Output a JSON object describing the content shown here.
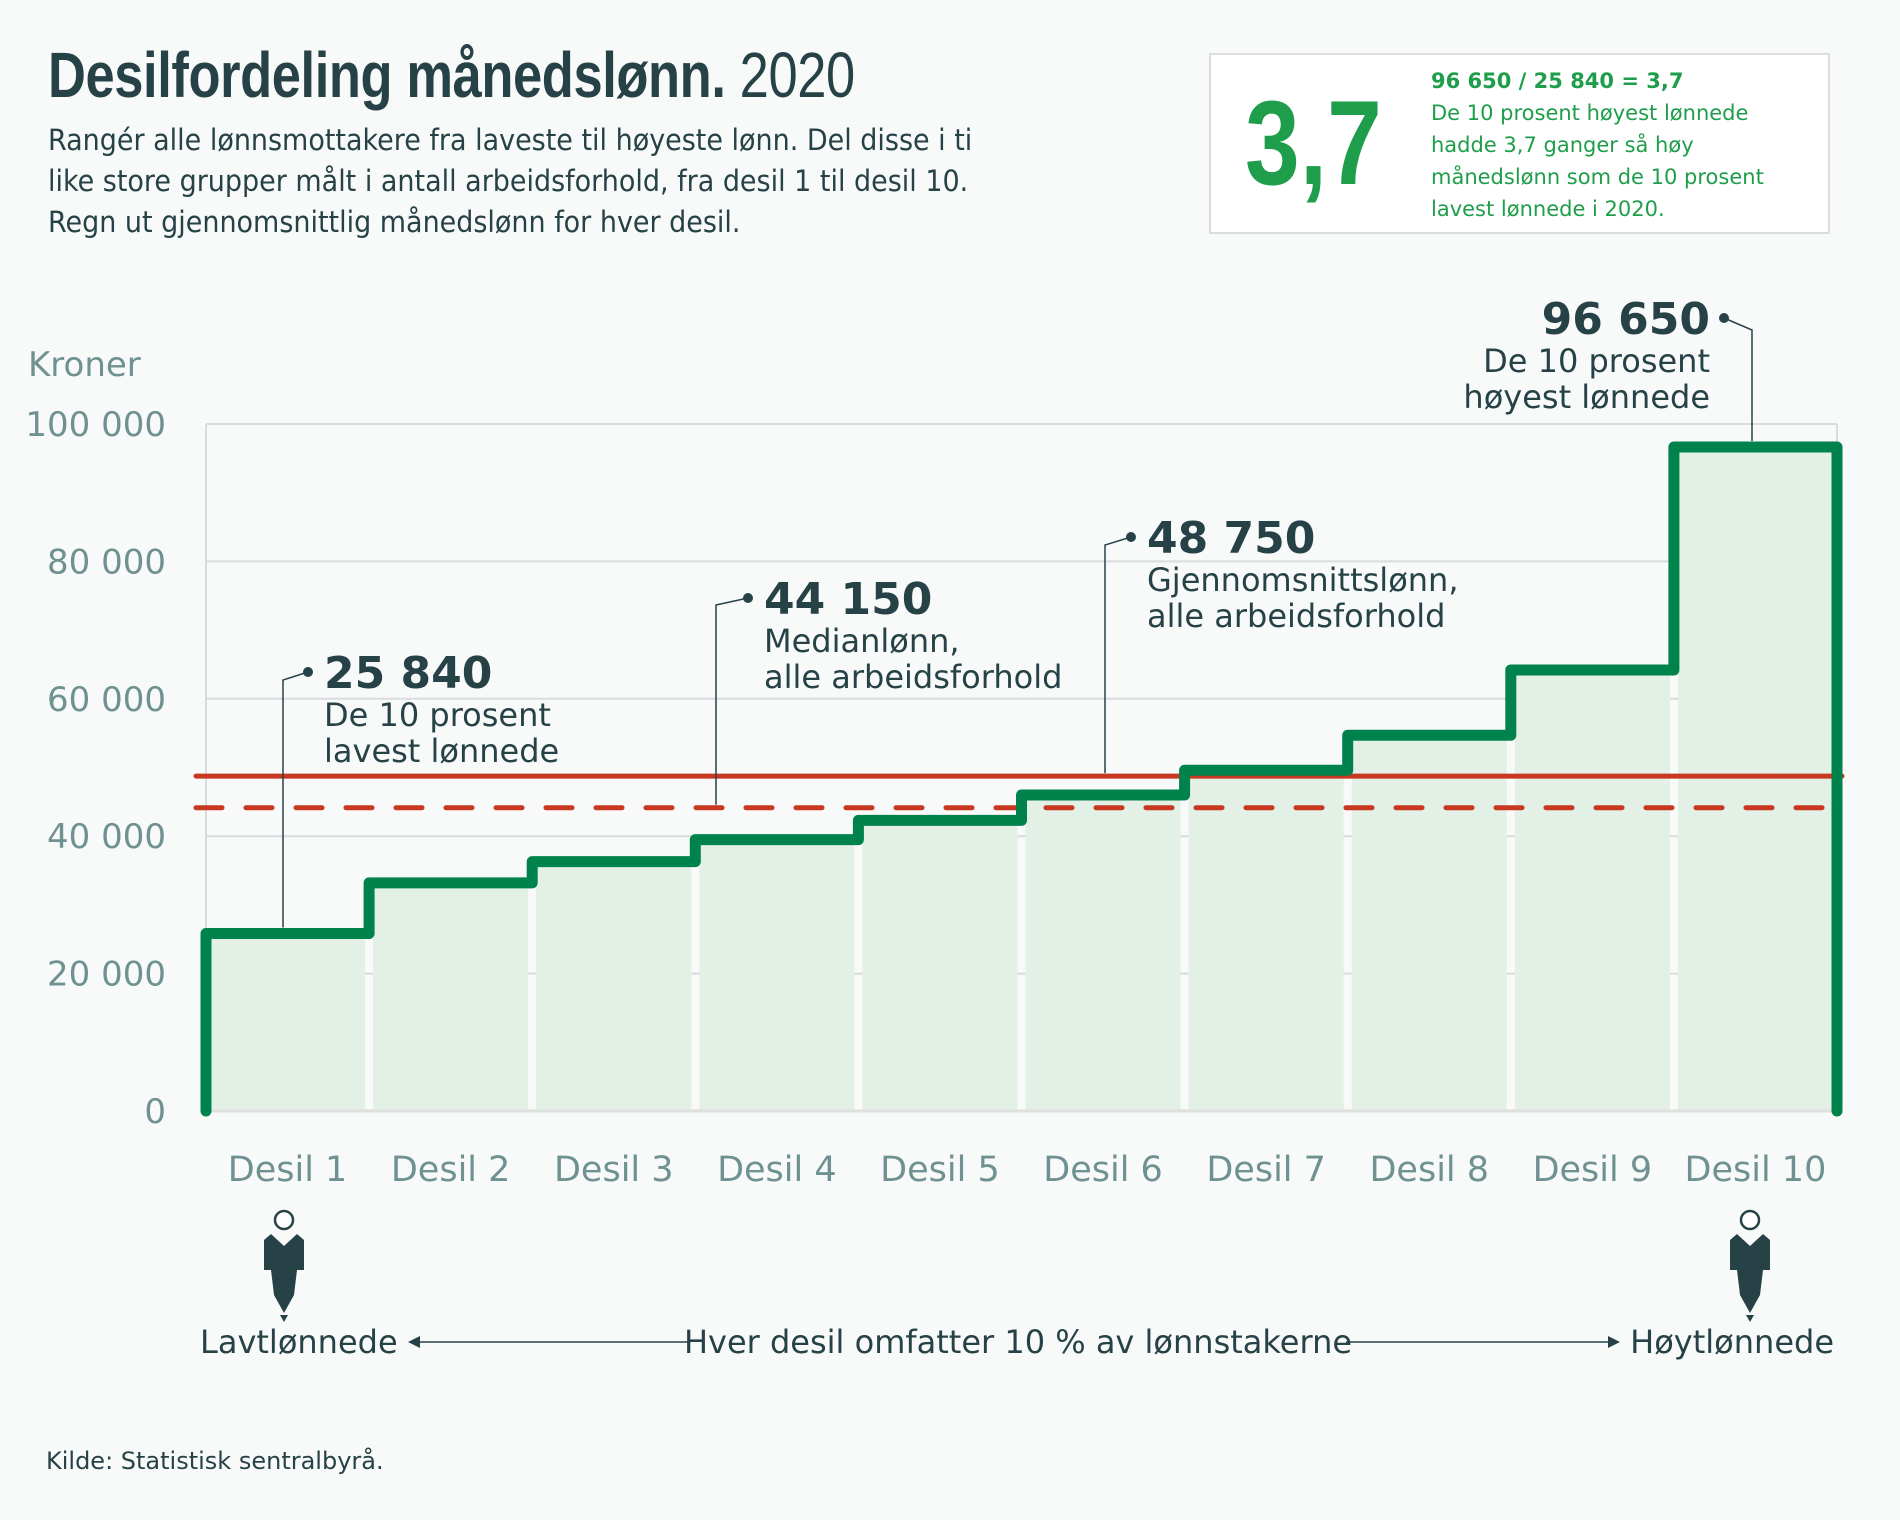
{
  "header": {
    "title_bold": "Desilfordeling månedslønn.",
    "title_year": "2020",
    "subtitle_lines": [
      "Rangér alle lønnsmottakere fra laveste til høyeste lønn. Del disse i ti",
      "like store grupper målt i antall arbeidsforhold, fra desil 1 til desil 10.",
      "Regn ut gjennomsnittlig månedslønn for hver desil."
    ]
  },
  "infobox": {
    "big_value": "3,7",
    "equation": "96 650 / 25 840 = 3,7",
    "lines": [
      "De 10 prosent høyest lønnede",
      "hadde 3,7 ganger så høy",
      "månedslønn som de 10 prosent",
      "lavest lønnede i 2020."
    ]
  },
  "chart_data": {
    "type": "step-area",
    "title": "Desilfordeling månedslønn. 2020",
    "ylabel": "Kroner",
    "xlabel": "",
    "ylim": [
      0,
      100000
    ],
    "yticks": [
      0,
      20000,
      40000,
      60000,
      80000,
      100000
    ],
    "ytick_labels": [
      "0",
      "20 000",
      "40 000",
      "60 000",
      "80 000",
      "100 000"
    ],
    "grid": true,
    "categories": [
      "Desil 1",
      "Desil 2",
      "Desil 3",
      "Desil 4",
      "Desil 5",
      "Desil 6",
      "Desil 7",
      "Desil 8",
      "Desil 9",
      "Desil 10"
    ],
    "values": [
      25840,
      33200,
      36300,
      39500,
      42300,
      46000,
      49600,
      54700,
      64200,
      96650
    ],
    "reference_lines": [
      {
        "name": "Gjennomsnittslønn",
        "value": 48750,
        "style": "solid",
        "color": "#c8371f"
      },
      {
        "name": "Medianlønn",
        "value": 44150,
        "style": "dashed",
        "color": "#c8371f"
      }
    ],
    "annotations": [
      {
        "target": "Desil 1",
        "value_label": "25 840",
        "lines": [
          "De 10 prosent",
          "lavest lønnede"
        ]
      },
      {
        "target": "median",
        "value_label": "44 150",
        "lines": [
          "Medianlønn,",
          "alle arbeidsforhold"
        ]
      },
      {
        "target": "mean",
        "value_label": "48 750",
        "lines": [
          "Gjennomsnittslønn,",
          "alle arbeidsforhold"
        ]
      },
      {
        "target": "Desil 10",
        "value_label": "96 650",
        "lines": [
          "De 10 prosent",
          "høyest lønnede"
        ]
      }
    ],
    "colors": {
      "step_line": "#00824d",
      "fill": "#e3f0e6",
      "reference": "#c8371f",
      "axis_text": "#6f9191",
      "grid": "#d9dcdc"
    }
  },
  "bottom": {
    "left_label": "Lavtlønnede",
    "center_label": "Hver desil omfatter 10 % av lønnstakerne",
    "right_label": "Høytlønnede",
    "icons": [
      "person-icon",
      "person-icon"
    ]
  },
  "source": "Kilde: Statistisk sentralbyrå."
}
